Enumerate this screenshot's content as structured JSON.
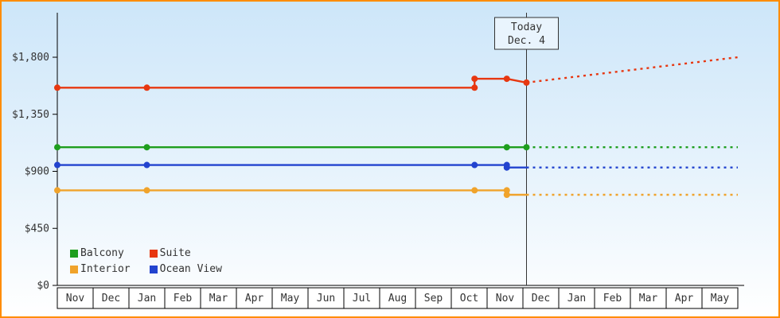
{
  "chart_data": {
    "type": "line",
    "title": "",
    "xlabel": "",
    "ylabel": "",
    "ylim": [
      0,
      1800
    ],
    "grid": false,
    "legend_position": "bottom-left",
    "y_ticks": [
      {
        "value": 0,
        "label": "$0"
      },
      {
        "value": 450,
        "label": "$450"
      },
      {
        "value": 900,
        "label": "$900"
      },
      {
        "value": 1350,
        "label": "$1,350"
      },
      {
        "value": 1800,
        "label": "$1,800"
      }
    ],
    "x_months": [
      "Nov",
      "Dec",
      "Jan",
      "Feb",
      "Mar",
      "Apr",
      "May",
      "Jun",
      "Jul",
      "Aug",
      "Sep",
      "Oct",
      "Nov",
      "Dec",
      "Jan",
      "Feb",
      "Mar",
      "Apr",
      "May"
    ],
    "annotation": {
      "line1": "Today",
      "line2": "Dec. 4",
      "month_position": 13.1
    },
    "projection_end_month": 19,
    "series": [
      {
        "name": "Balcony",
        "color": "#1e9e1e",
        "solid": [
          [
            0,
            1090
          ],
          [
            13.1,
            1090
          ]
        ],
        "markers": [
          [
            0,
            1090
          ],
          [
            2.5,
            1090
          ],
          [
            12.55,
            1090
          ],
          [
            13.1,
            1090
          ]
        ],
        "projection": [
          [
            13.1,
            1090
          ],
          [
            19,
            1090
          ]
        ]
      },
      {
        "name": "Suite",
        "color": "#e73710",
        "solid": [
          [
            0,
            1560
          ],
          [
            11.65,
            1560
          ],
          [
            11.65,
            1630
          ],
          [
            12.55,
            1630
          ],
          [
            13.1,
            1600
          ]
        ],
        "markers": [
          [
            0,
            1560
          ],
          [
            2.5,
            1560
          ],
          [
            11.65,
            1560
          ],
          [
            11.65,
            1630
          ],
          [
            12.55,
            1630
          ],
          [
            13.1,
            1600
          ]
        ],
        "projection": [
          [
            13.1,
            1600
          ],
          [
            19,
            1800
          ]
        ]
      },
      {
        "name": "Interior",
        "color": "#f0a32b",
        "solid": [
          [
            0,
            750
          ],
          [
            12.55,
            750
          ],
          [
            12.55,
            715
          ],
          [
            13.1,
            715
          ]
        ],
        "markers": [
          [
            0,
            750
          ],
          [
            2.5,
            750
          ],
          [
            11.65,
            750
          ],
          [
            12.55,
            750
          ],
          [
            12.55,
            715
          ]
        ],
        "projection": [
          [
            13.1,
            715
          ],
          [
            19,
            715
          ]
        ]
      },
      {
        "name": "Ocean View",
        "color": "#2243cf",
        "solid": [
          [
            0,
            950
          ],
          [
            12.55,
            950
          ],
          [
            12.55,
            930
          ],
          [
            13.1,
            930
          ]
        ],
        "markers": [
          [
            0,
            950
          ],
          [
            2.5,
            950
          ],
          [
            11.65,
            950
          ],
          [
            12.55,
            950
          ],
          [
            12.55,
            930
          ]
        ],
        "projection": [
          [
            13.1,
            930
          ],
          [
            19,
            930
          ]
        ]
      }
    ]
  }
}
